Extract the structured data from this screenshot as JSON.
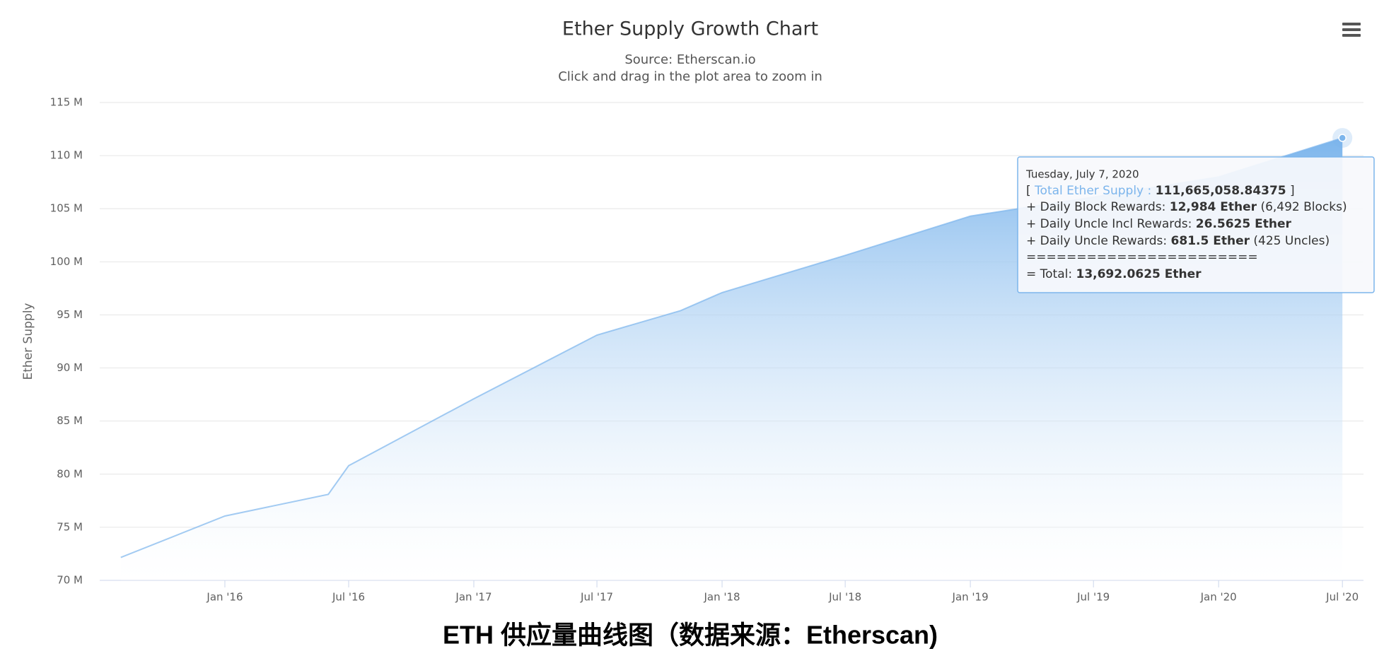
{
  "chart_data": {
    "type": "area",
    "title": "Ether Supply Growth Chart",
    "subtitle": "Source: Etherscan.io",
    "hint": "Click and drag in the plot area to zoom in",
    "y_label": "Ether Supply",
    "caption": "ETH 供应量曲线图（数据来源：Etherscan)",
    "x": [
      "2015-08",
      "2016-01",
      "2016-06",
      "2016-07",
      "2017-01",
      "2017-07",
      "2017-11",
      "2018-01",
      "2018-07",
      "2019-01",
      "2019-07",
      "2020-01",
      "2020-07"
    ],
    "series": [
      {
        "name": "Total Ether Supply",
        "color": "#7cb5ec",
        "values": [
          72160000,
          76060000,
          78100000,
          80800000,
          87100000,
          93100000,
          95400000,
          97100000,
          100600000,
          104300000,
          106100000,
          108000000,
          111665058.84375
        ]
      }
    ],
    "xlim": [
      "2015-07",
      "2020-08"
    ],
    "xticks": [
      {
        "value": "2016-01",
        "label": "Jan '16"
      },
      {
        "value": "2016-07",
        "label": "Jul '16"
      },
      {
        "value": "2017-01",
        "label": "Jan '17"
      },
      {
        "value": "2017-07",
        "label": "Jul '17"
      },
      {
        "value": "2018-01",
        "label": "Jan '18"
      },
      {
        "value": "2018-07",
        "label": "Jul '18"
      },
      {
        "value": "2019-01",
        "label": "Jan '19"
      },
      {
        "value": "2019-07",
        "label": "Jul '19"
      },
      {
        "value": "2020-01",
        "label": "Jan '20"
      },
      {
        "value": "2020-07",
        "label": "Jul '20"
      }
    ],
    "ylim": [
      70000000,
      115000000
    ],
    "yticks": [
      {
        "value": 70000000,
        "label": "70 M"
      },
      {
        "value": 75000000,
        "label": "75 M"
      },
      {
        "value": 80000000,
        "label": "80 M"
      },
      {
        "value": 85000000,
        "label": "85 M"
      },
      {
        "value": 90000000,
        "label": "90 M"
      },
      {
        "value": 95000000,
        "label": "95 M"
      },
      {
        "value": 100000000,
        "label": "100 M"
      },
      {
        "value": 105000000,
        "label": "105 M"
      },
      {
        "value": 110000000,
        "label": "110 M"
      },
      {
        "value": 115000000,
        "label": "115 M"
      }
    ],
    "grid": true,
    "tooltip": {
      "date": "Tuesday, July 7, 2020",
      "open": "[",
      "supply_label": "Total Ether Supply :",
      "supply_value": "111,665,058.84375",
      "close": "]",
      "block_label": "+ Daily Block Rewards:",
      "block_value": "12,984 Ether",
      "block_note": "(6,492 Blocks)",
      "uncle_incl_label": "+ Daily Uncle Incl Rewards:",
      "uncle_incl_value": "26.5625 Ether",
      "uncle_label": "+ Daily Uncle Rewards:",
      "uncle_value": "681.5 Ether",
      "uncle_note": "(425 Uncles)",
      "separator": "=======================",
      "total_label": "= Total:",
      "total_value": "13,692.0625 Ether"
    }
  }
}
